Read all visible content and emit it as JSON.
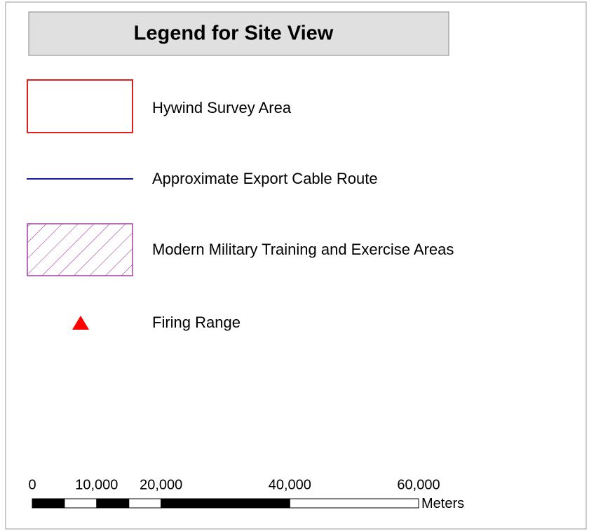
{
  "legend": {
    "title": "Legend for Site View",
    "items": [
      {
        "label": "Hywind Survey Area"
      },
      {
        "label": "Approximate Export Cable Route"
      },
      {
        "label": "Modern Military Training and Exercise Areas"
      },
      {
        "label": "Firing Range"
      }
    ]
  },
  "scale_bar": {
    "ticks": [
      0,
      {
        "value": 10000,
        "label": "10,000"
      },
      {
        "value": 20000,
        "label": "20,000"
      },
      {
        "value": 40000,
        "label": "40,000"
      },
      {
        "value": 60000,
        "label": "60,000"
      }
    ],
    "unit": "Meters"
  }
}
